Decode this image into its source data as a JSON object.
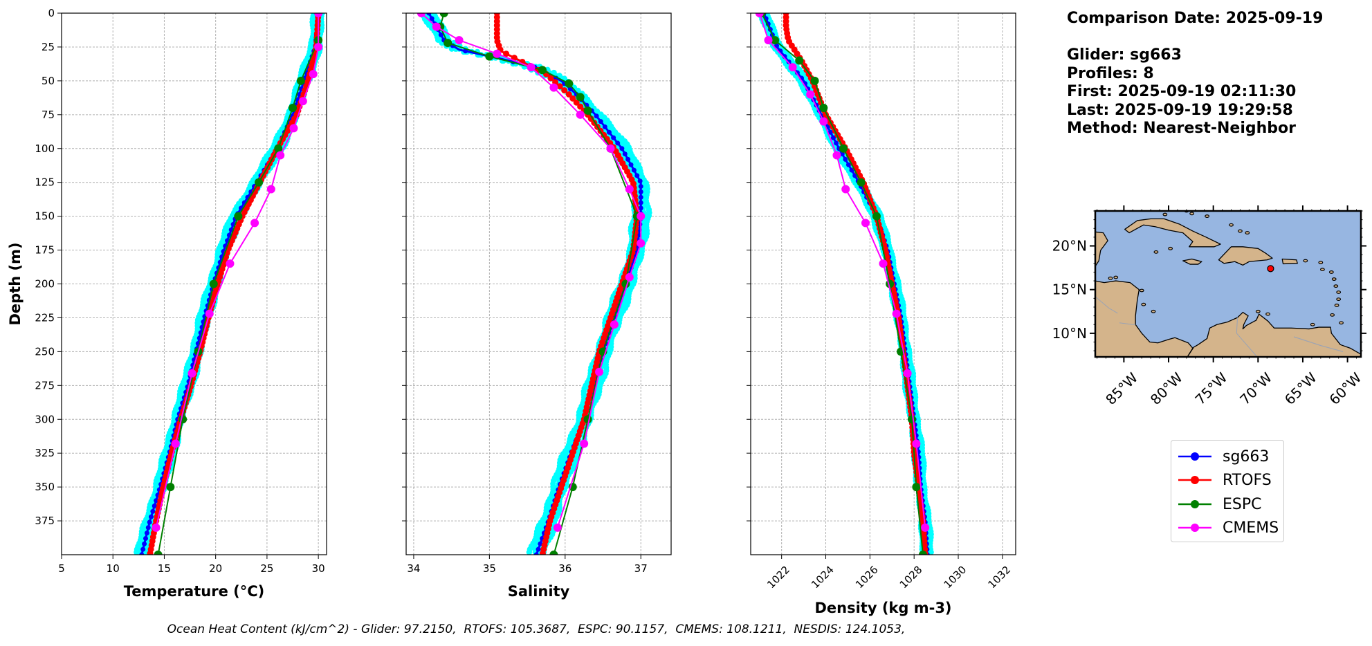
{
  "chart_data": [
    {
      "type": "line",
      "xlabel": "Temperature (°C)",
      "ylabel": "Depth (m)",
      "xlim": [
        5,
        30.8
      ],
      "ylim": [
        400,
        0
      ],
      "xticks": [
        "5",
        "10",
        "15",
        "20",
        "25",
        "30"
      ],
      "yticks": [
        "0",
        "25",
        "50",
        "75",
        "100",
        "125",
        "150",
        "175",
        "200",
        "225",
        "250",
        "275",
        "300",
        "325",
        "350",
        "375"
      ],
      "grid": true,
      "series": [
        {
          "name": "sg663",
          "depth": [
            0,
            25,
            50,
            75,
            100,
            125,
            150,
            175,
            200,
            225,
            250,
            275,
            300,
            325,
            350,
            375,
            400
          ],
          "values": [
            30.0,
            29.7,
            28.6,
            27.5,
            26.0,
            24.0,
            22.0,
            20.8,
            19.8,
            18.9,
            18.1,
            17.3,
            16.3,
            15.5,
            14.6,
            13.6,
            12.8
          ]
        },
        {
          "name": "RTOFS",
          "depth": [
            0,
            25,
            50,
            75,
            100,
            125,
            150,
            175,
            200,
            225,
            250,
            275,
            300,
            325,
            350,
            375,
            400
          ],
          "values": [
            30.0,
            29.8,
            29.0,
            27.9,
            26.0,
            24.3,
            22.6,
            21.2,
            20.2,
            19.3,
            18.5,
            17.6,
            16.6,
            15.7,
            14.9,
            14.2,
            13.6
          ]
        },
        {
          "name": "ESPC",
          "depth": [
            0,
            20,
            50,
            70,
            100,
            125,
            150,
            200,
            250,
            300,
            350,
            400
          ],
          "values": [
            30.0,
            30.0,
            28.3,
            27.5,
            26.1,
            24.2,
            22.2,
            19.8,
            18.3,
            16.8,
            15.6,
            14.4
          ]
        },
        {
          "name": "CMEMS",
          "depth": [
            0,
            25,
            45,
            65,
            85,
            105,
            130,
            155,
            185,
            222,
            266,
            318,
            380
          ],
          "values": [
            30.0,
            30.0,
            29.5,
            28.5,
            27.6,
            26.3,
            25.4,
            23.8,
            21.4,
            19.4,
            17.7,
            16.1,
            14.2
          ]
        }
      ]
    },
    {
      "type": "line",
      "xlabel": "Salinity",
      "ylabel": "",
      "xlim": [
        33.9,
        37.4
      ],
      "ylim": [
        400,
        0
      ],
      "xticks": [
        "34",
        "35",
        "36",
        "37"
      ],
      "grid": true,
      "series": [
        {
          "name": "sg663",
          "depth": [
            0,
            10,
            20,
            27,
            33,
            40,
            50,
            60,
            75,
            100,
            125,
            150,
            175,
            200,
            225,
            250,
            275,
            300,
            325,
            350,
            375,
            400
          ],
          "values": [
            34.2,
            34.3,
            34.4,
            34.6,
            35.1,
            35.6,
            35.95,
            36.15,
            36.4,
            36.75,
            37.0,
            37.0,
            36.95,
            36.8,
            36.65,
            36.5,
            36.38,
            36.25,
            36.08,
            35.92,
            35.78,
            35.62
          ]
        },
        {
          "name": "RTOFS",
          "depth": [
            0,
            10,
            20,
            28,
            35,
            45,
            60,
            75,
            100,
            125,
            150,
            175,
            200,
            225,
            250,
            275,
            300,
            325,
            350,
            375,
            400
          ],
          "values": [
            35.1,
            35.1,
            35.1,
            35.15,
            35.4,
            35.75,
            36.05,
            36.3,
            36.65,
            36.9,
            36.95,
            36.9,
            36.75,
            36.6,
            36.45,
            36.35,
            36.25,
            36.1,
            35.95,
            35.8,
            35.7
          ]
        },
        {
          "name": "ESPC",
          "depth": [
            0,
            10,
            22,
            32,
            42,
            52,
            62,
            72,
            100,
            150,
            200,
            250,
            300,
            350,
            400
          ],
          "values": [
            34.4,
            34.35,
            34.45,
            35.0,
            35.7,
            36.05,
            36.2,
            36.3,
            36.6,
            36.95,
            36.8,
            36.5,
            36.3,
            36.1,
            35.85
          ]
        },
        {
          "name": "CMEMS",
          "depth": [
            0,
            10,
            20,
            30,
            40,
            55,
            75,
            100,
            130,
            150,
            170,
            195,
            230,
            265,
            318,
            380
          ],
          "values": [
            34.1,
            34.3,
            34.6,
            35.1,
            35.55,
            35.85,
            36.2,
            36.6,
            36.85,
            37.0,
            37.0,
            36.85,
            36.65,
            36.45,
            36.25,
            35.9
          ]
        }
      ]
    },
    {
      "type": "line",
      "xlabel": "Density (kg m-3)",
      "ylabel": "",
      "xlim": [
        1020.6,
        1032.6
      ],
      "ylim": [
        400,
        0
      ],
      "xticks": [
        "1022",
        "1024",
        "1026",
        "1028",
        "1030",
        "1032"
      ],
      "grid": true,
      "series": [
        {
          "name": "sg663",
          "depth": [
            0,
            25,
            50,
            75,
            100,
            125,
            150,
            175,
            200,
            225,
            250,
            275,
            300,
            325,
            350,
            375,
            400
          ],
          "values": [
            1021.2,
            1021.8,
            1023.0,
            1023.8,
            1024.6,
            1025.5,
            1026.3,
            1026.8,
            1027.1,
            1027.4,
            1027.6,
            1027.8,
            1028.0,
            1028.2,
            1028.3,
            1028.5,
            1028.6
          ]
        },
        {
          "name": "RTOFS",
          "depth": [
            0,
            10,
            20,
            25,
            35,
            50,
            75,
            100,
            125,
            150,
            175,
            200,
            225,
            250,
            275,
            300,
            325,
            350,
            375,
            400
          ],
          "values": [
            1022.2,
            1022.2,
            1022.3,
            1022.5,
            1022.9,
            1023.4,
            1024.0,
            1024.9,
            1025.7,
            1026.3,
            1026.7,
            1027.0,
            1027.3,
            1027.5,
            1027.7,
            1027.9,
            1028.0,
            1028.2,
            1028.4,
            1028.5
          ]
        },
        {
          "name": "ESPC",
          "depth": [
            0,
            20,
            35,
            50,
            70,
            100,
            125,
            150,
            200,
            250,
            300,
            350,
            400
          ],
          "values": [
            1021.1,
            1021.7,
            1022.8,
            1023.5,
            1023.9,
            1024.8,
            1025.6,
            1026.3,
            1026.9,
            1027.4,
            1027.9,
            1028.1,
            1028.4
          ]
        },
        {
          "name": "CMEMS",
          "depth": [
            0,
            20,
            40,
            60,
            80,
            105,
            130,
            155,
            185,
            222,
            266,
            318,
            380
          ],
          "values": [
            1021.0,
            1021.4,
            1022.5,
            1023.3,
            1023.9,
            1024.5,
            1024.9,
            1025.8,
            1026.6,
            1027.2,
            1027.7,
            1028.1,
            1028.5
          ]
        }
      ]
    }
  ],
  "colors": {
    "sg663": "#0000ff",
    "RTOFS": "#ff0000",
    "ESPC": "#008000",
    "CMEMS": "#ff00ff",
    "glider_spread": "#00ffff",
    "ocean": "#97b6e1",
    "land": "#d4b48b"
  },
  "info": {
    "comparison": "Comparison Date: 2025-09-19",
    "glider": "Glider: sg663",
    "profiles": "Profiles: 8",
    "first": "First: 2025-09-19 02:11:30",
    "last": "Last: 2025-09-19 19:29:58",
    "method": "Method: Nearest-Neighbor"
  },
  "map": {
    "lat_labels": [
      "20°N",
      "15°N",
      "10°N"
    ],
    "lon_labels": [
      "85°W",
      "80°W",
      "75°W",
      "70°W",
      "65°W",
      "60°W"
    ],
    "glider_position": {
      "lon": -68.6,
      "lat": 17.4
    }
  },
  "legend": {
    "items": [
      "sg663",
      "RTOFS",
      "ESPC",
      "CMEMS"
    ],
    "placement": "lower-right"
  },
  "footer": "Ocean Heat Content (kJ/cm^2) - Glider: 97.2150,  RTOFS: 105.3687,  ESPC: 90.1157,  CMEMS: 108.1211,  NESDIS: 124.1053,"
}
